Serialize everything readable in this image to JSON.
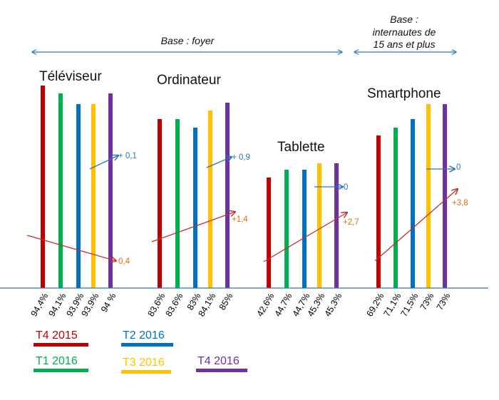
{
  "chart_data": {
    "type": "bar",
    "series_names": [
      "T4 2015",
      "T1 2016",
      "T2 2016",
      "T3 2016",
      "T4 2016"
    ],
    "colors": {
      "T4 2015": "#c00000",
      "T1 2016": "#00b050",
      "T2 2016": "#0070c0",
      "T3 2016": "#ffc000",
      "T4 2016": "#7030a0",
      "axis": "#2e75b6",
      "trend_red": "#c0302a",
      "trend_blue": "#2e75b6",
      "delta_orange": "#e36c09",
      "delta_blue": "#2e75b6"
    },
    "ylim": [
      0,
      100
    ],
    "groups": [
      {
        "title": "Téléviseur",
        "values": [
          94.4,
          94.1,
          93.9,
          93.9,
          94.0
        ],
        "value_labels": [
          "94,4%",
          "94,1%",
          "93,9%",
          "93,9%",
          "94 %"
        ],
        "change_vs_prev_quarter": "+ 0,1",
        "change_vs_prev_year": "- 0,4"
      },
      {
        "title": "Ordinateur",
        "values": [
          83.6,
          83.6,
          83.0,
          84.1,
          85.0
        ],
        "value_labels": [
          "83,6%",
          "83,6%",
          "83%",
          "84,1%",
          "85%"
        ],
        "change_vs_prev_quarter": "+ 0,9",
        "change_vs_prev_year": "+1,4"
      },
      {
        "title": "Tablette",
        "values": [
          42.6,
          44.7,
          44.7,
          45.3,
          45.3
        ],
        "value_labels": [
          "42,6%",
          "44,7%",
          "44,7%",
          "45,3%",
          "45,3%"
        ],
        "change_vs_prev_quarter": "0",
        "change_vs_prev_year": "+2,7"
      },
      {
        "title": "Smartphone",
        "values": [
          69.2,
          71.1,
          71.5,
          73.0,
          73.0
        ],
        "value_labels": [
          "69,2%",
          "71,1%",
          "71,5%",
          "73%",
          "73%"
        ],
        "change_vs_prev_quarter": "0",
        "change_vs_prev_year": "+3,8"
      }
    ],
    "bases": [
      {
        "label_lines": [
          "Base : foyer"
        ],
        "spans": [
          "Téléviseur",
          "Ordinateur",
          "Tablette"
        ]
      },
      {
        "label_lines": [
          "Base :",
          "internautes de",
          "15 ans et plus"
        ],
        "spans": [
          "Smartphone"
        ]
      }
    ]
  }
}
